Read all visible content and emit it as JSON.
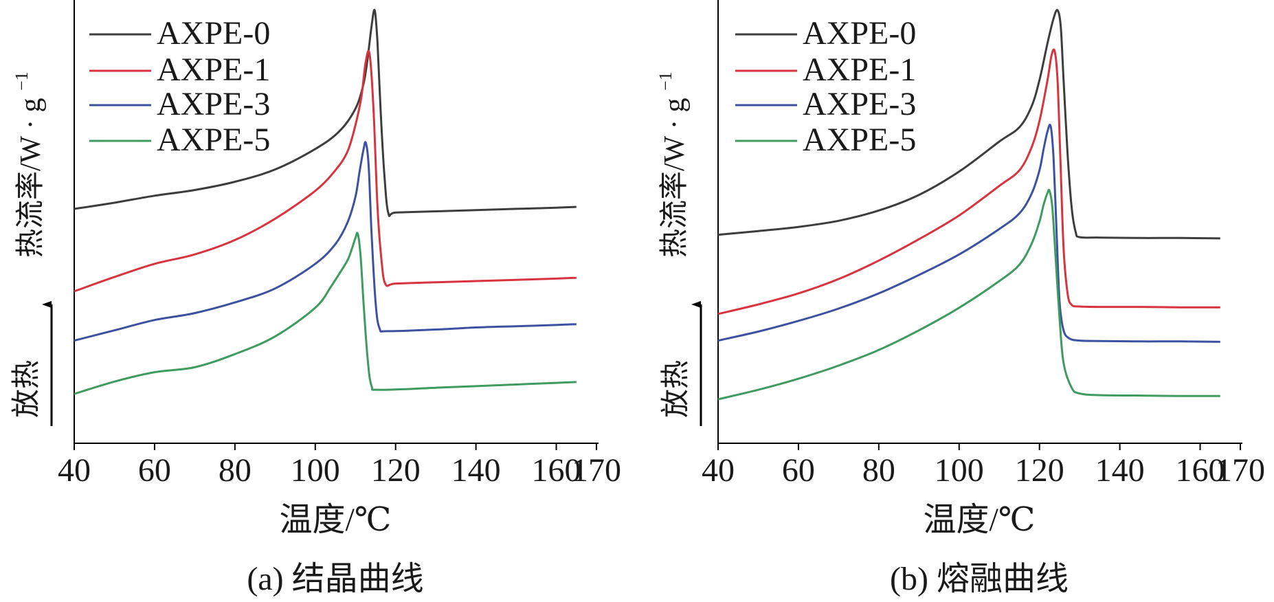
{
  "chart_data": [
    {
      "type": "line",
      "panel": "a",
      "caption": "(a) 结晶曲线",
      "xlabel": "温度/℃",
      "ylabel": "热流率/W·g⁻¹",
      "ylabel_main": "热流率/W",
      "ylabel_dot": "·",
      "ylabel_g": "g",
      "ylabel_sup": "−1",
      "exo_label": "放热",
      "xlim": [
        40,
        170
      ],
      "xticks": [
        40,
        60,
        80,
        100,
        120,
        140,
        160,
        170
      ],
      "ylim": [
        0,
        10
      ],
      "legend_position": "top-left",
      "series": [
        {
          "name": "AXPE-0",
          "color": "#3d3d3d",
          "x": [
            40,
            50,
            60,
            70,
            80,
            90,
            100,
            106,
            110,
            112,
            113,
            114,
            114.8,
            115.5,
            116.3,
            117.2,
            118.2,
            120,
            130,
            140,
            150,
            160,
            165
          ],
          "y": [
            5.16,
            5.31,
            5.48,
            5.62,
            5.82,
            6.12,
            6.62,
            7.05,
            7.6,
            8.2,
            8.8,
            9.6,
            10.0,
            9.2,
            7.5,
            6.0,
            5.05,
            5.07,
            5.1,
            5.13,
            5.16,
            5.19,
            5.21
          ]
        },
        {
          "name": "AXPE-1",
          "color": "#d8343f",
          "x": [
            40,
            50,
            60,
            70,
            80,
            90,
            100,
            105,
            108,
            110,
            111.5,
            112.5,
            113.5,
            114.5,
            115.5,
            116.5,
            117.5,
            120,
            130,
            140,
            150,
            160,
            165
          ],
          "y": [
            3.15,
            3.5,
            3.82,
            4.05,
            4.4,
            4.92,
            5.6,
            6.1,
            6.55,
            7.2,
            7.9,
            8.7,
            8.95,
            7.6,
            5.2,
            3.9,
            3.32,
            3.34,
            3.37,
            3.4,
            3.43,
            3.46,
            3.48
          ]
        },
        {
          "name": "AXPE-3",
          "color": "#3c52a0",
          "x": [
            40,
            50,
            60,
            70,
            80,
            90,
            100,
            105,
            108,
            110,
            111,
            112,
            112.6,
            113.3,
            114,
            115,
            116,
            118,
            130,
            140,
            150,
            160,
            165
          ],
          "y": [
            1.95,
            2.2,
            2.45,
            2.62,
            2.88,
            3.22,
            3.82,
            4.3,
            4.82,
            5.45,
            6.05,
            6.6,
            6.77,
            6.2,
            4.6,
            2.9,
            2.25,
            2.18,
            2.22,
            2.27,
            2.3,
            2.33,
            2.35
          ]
        },
        {
          "name": "AXPE-5",
          "color": "#3f9b5f",
          "x": [
            40,
            50,
            60,
            70,
            80,
            90,
            100,
            104,
            106,
            108,
            109,
            110,
            110.6,
            111.3,
            112,
            113,
            114,
            116,
            130,
            140,
            150,
            160,
            165
          ],
          "y": [
            0.65,
            0.95,
            1.18,
            1.3,
            1.62,
            2.05,
            2.75,
            3.28,
            3.58,
            3.9,
            4.15,
            4.45,
            4.55,
            4.0,
            2.9,
            1.55,
            0.85,
            0.75,
            0.8,
            0.84,
            0.88,
            0.92,
            0.94
          ]
        }
      ]
    },
    {
      "type": "line",
      "panel": "b",
      "caption": "(b) 熔融曲线",
      "xlabel": "温度/℃",
      "ylabel": "热流率/W·g⁻¹",
      "ylabel_main": "热流率/W",
      "ylabel_dot": "·",
      "ylabel_g": "g",
      "ylabel_sup": "−1",
      "exo_label": "放热",
      "xlim": [
        40,
        170
      ],
      "xticks": [
        40,
        60,
        80,
        100,
        120,
        140,
        160,
        170
      ],
      "ylim": [
        0,
        10
      ],
      "legend_position": "top-left",
      "series": [
        {
          "name": "AXPE-0",
          "color": "#3d3d3d",
          "x": [
            40,
            50,
            60,
            70,
            80,
            90,
            100,
            110,
            115,
            118,
            120,
            122,
            123.5,
            124.5,
            125.3,
            126,
            127,
            128,
            129,
            130,
            135,
            145,
            155,
            165
          ],
          "y": [
            4.53,
            4.62,
            4.72,
            4.87,
            5.12,
            5.5,
            6.07,
            6.8,
            7.15,
            7.65,
            8.3,
            9.2,
            9.8,
            10.0,
            9.6,
            8.3,
            6.5,
            5.2,
            4.6,
            4.47,
            4.46,
            4.45,
            4.45,
            4.44
          ]
        },
        {
          "name": "AXPE-1",
          "color": "#d8343f",
          "x": [
            40,
            50,
            60,
            70,
            80,
            90,
            100,
            110,
            115,
            118,
            120,
            122,
            123,
            123.8,
            124.5,
            125.2,
            126,
            127,
            128,
            130,
            135,
            145,
            155,
            165
          ],
          "y": [
            2.6,
            2.83,
            3.1,
            3.45,
            3.9,
            4.42,
            5.0,
            5.72,
            6.1,
            6.65,
            7.3,
            8.3,
            8.9,
            9.0,
            8.3,
            6.4,
            4.2,
            3.1,
            2.82,
            2.78,
            2.77,
            2.77,
            2.76,
            2.76
          ]
        },
        {
          "name": "AXPE-3",
          "color": "#3c52a0",
          "x": [
            40,
            50,
            60,
            70,
            80,
            90,
            100,
            110,
            115,
            118,
            120,
            121,
            122,
            122.8,
            123.5,
            124.3,
            125,
            126,
            127.5,
            130,
            135,
            145,
            155,
            165
          ],
          "y": [
            1.95,
            2.17,
            2.43,
            2.73,
            3.1,
            3.55,
            4.05,
            4.67,
            5.05,
            5.52,
            6.1,
            6.6,
            7.05,
            7.17,
            6.4,
            4.5,
            2.9,
            2.2,
            2.0,
            1.95,
            1.94,
            1.93,
            1.93,
            1.92
          ]
        },
        {
          "name": "AXPE-5",
          "color": "#3f9b5f",
          "x": [
            40,
            50,
            60,
            70,
            80,
            90,
            100,
            110,
            115,
            118,
            120,
            121,
            122,
            122.5,
            123.2,
            124,
            125,
            126,
            128,
            130,
            135,
            145,
            155,
            165
          ],
          "y": [
            0.52,
            0.75,
            1.02,
            1.34,
            1.72,
            2.2,
            2.75,
            3.4,
            3.8,
            4.3,
            4.85,
            5.25,
            5.55,
            5.6,
            5.2,
            4.0,
            2.5,
            1.4,
            0.8,
            0.66,
            0.62,
            0.61,
            0.6,
            0.6
          ]
        }
      ]
    }
  ]
}
